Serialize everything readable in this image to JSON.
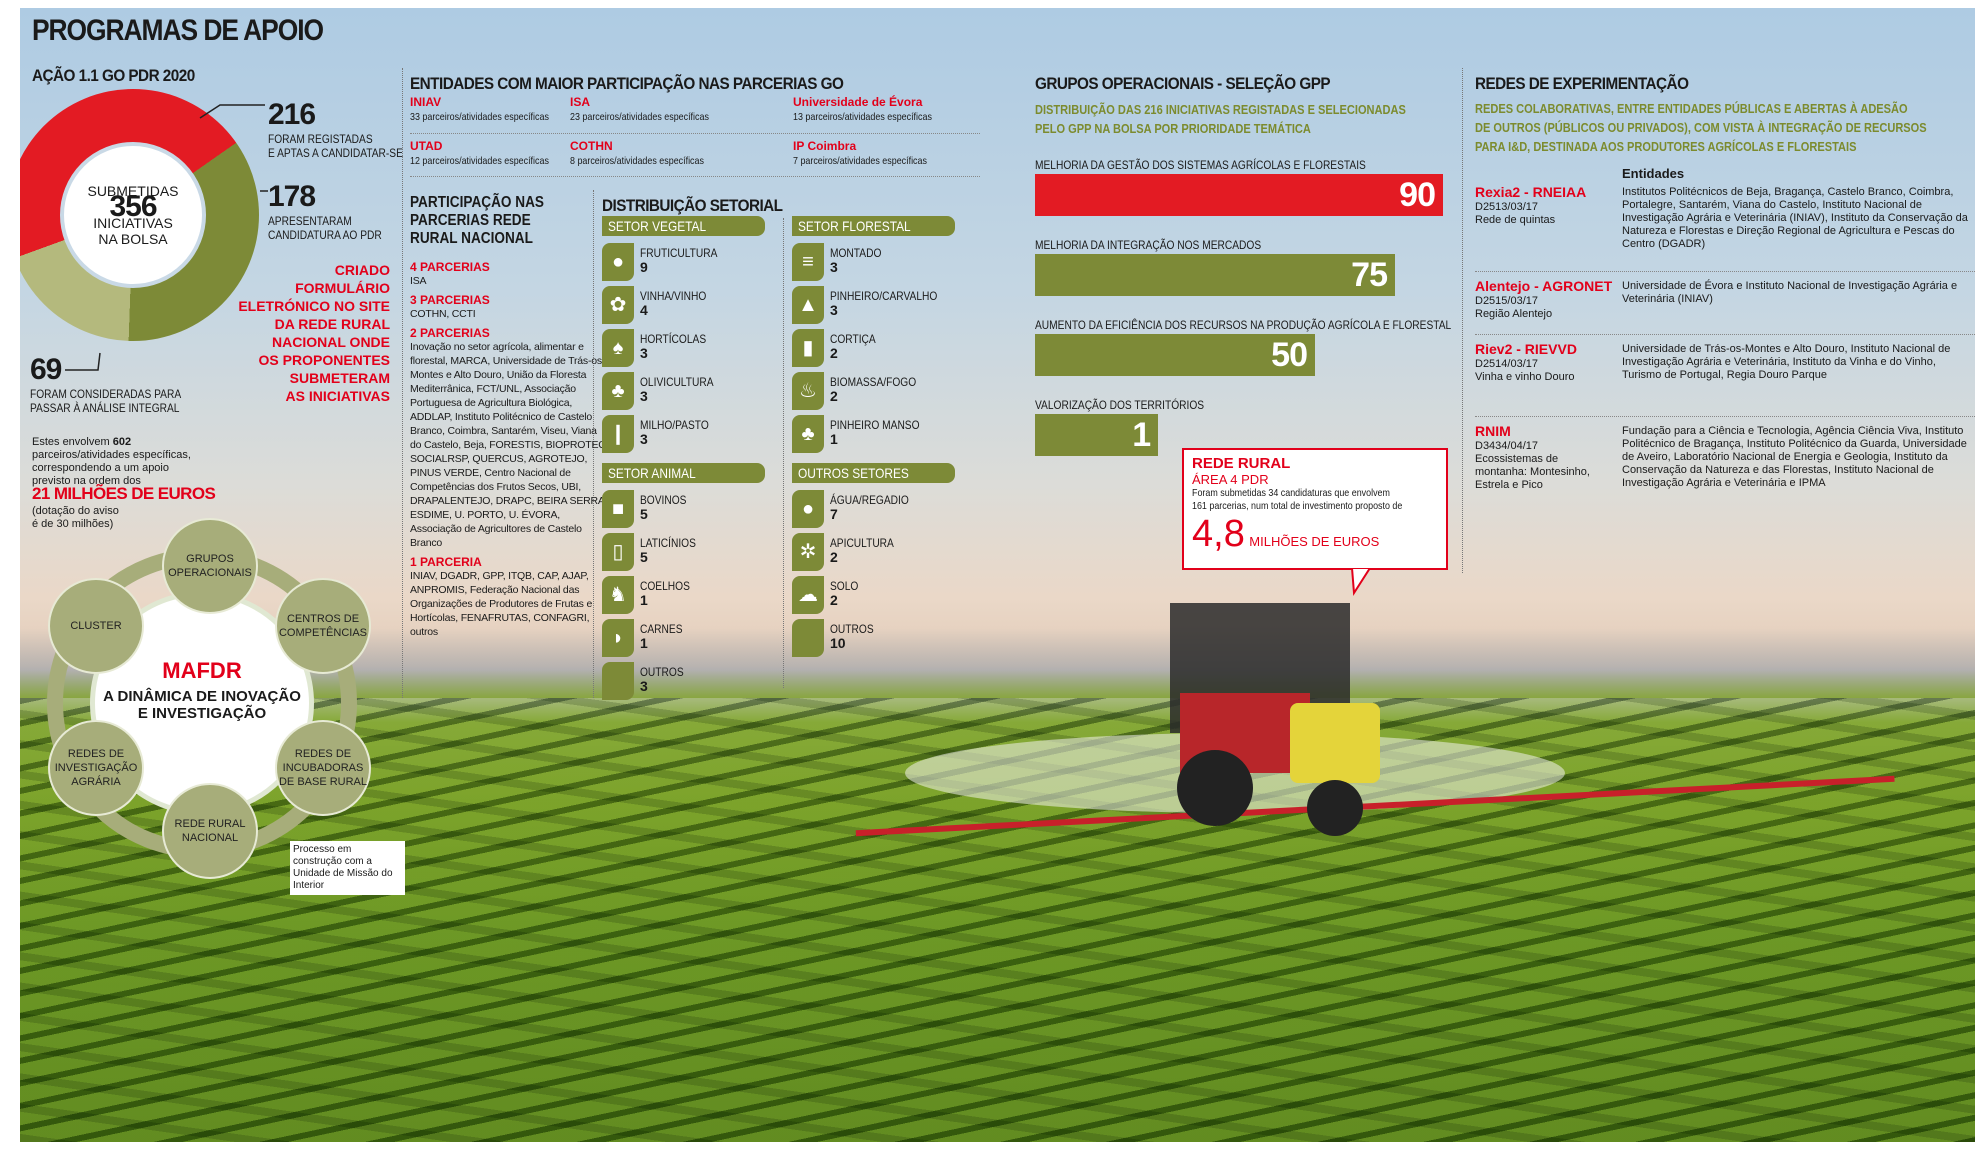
{
  "title": "PROGRAMAS DE APOIO",
  "accao": {
    "title": "AÇÃO 1.1 GO PDR 2020",
    "center": {
      "top": "SUBMETIDAS",
      "number": "356",
      "line1": "INICIATIVAS",
      "line2": "NA BOLSA"
    },
    "stat216": {
      "number": "216",
      "line1": "FORAM REGISTADAS",
      "line2": "E APTAS A CANDIDATAR-SE"
    },
    "stat178": {
      "number": "178",
      "line1": "APRESENTARAM",
      "line2": "CANDIDATURA AO PDR"
    },
    "stat69": {
      "number": "69",
      "line1": "FORAM CONSIDERADAS PARA",
      "line2": "PASSAR À ANÁLISE INTEGRAL"
    },
    "red_note": [
      "CRIADO",
      "FORMULÁRIO",
      "ELETRÓNICO NO SITE",
      "DA REDE RURAL",
      "NACIONAL ONDE",
      "OS PROPONENTES",
      "SUBMETERAM",
      "AS INICIATIVAS"
    ],
    "detail": {
      "pre": "Estes envolvem ",
      "num": "602",
      "post": " parceiros/atividades específicas, correspondendo a um apoio previsto na ordem dos",
      "amount": "21 MILHÕES DE EUROS",
      "note1": "(dotação do aviso",
      "note2": "é de 30 milhões)"
    },
    "donut_colors": {
      "registadas": "#e31b23",
      "candidatura": "#7d8a37",
      "analise": "#b4b97d"
    }
  },
  "cycle": {
    "title": "MAFDR",
    "subtitle1": "A DINÂMICA DE INOVAÇÃO",
    "subtitle2": "E INVESTIGAÇÃO",
    "nodes": [
      "GRUPOS OPERACIONAIS",
      "CENTROS DE COMPETÊNCIAS",
      "REDES DE INCUBADORAS DE BASE RURAL",
      "REDE RURAL NACIONAL",
      "REDES DE INVESTIGAÇÃO AGRÁRIA",
      "CLUSTER"
    ],
    "note": "Processo em construção com a Unidade de Missão do Interior"
  },
  "entidades": {
    "title": "ENTIDADES COM MAIOR PARTICIPAÇÃO NAS PARCERIAS GO",
    "items": [
      {
        "name": "INIAV",
        "desc": "33 parceiros/atividades específicas"
      },
      {
        "name": "ISA",
        "desc": "23 parceiros/atividades específicas"
      },
      {
        "name": "Universidade de Évora",
        "desc": "13 parceiros/atividades específicas"
      },
      {
        "name": "UTAD",
        "desc": "12 parceiros/atividades específicas"
      },
      {
        "name": "COTHN",
        "desc": "8 parceiros/atividades específicas"
      },
      {
        "name": "IP Coimbra",
        "desc": "7 parceiros/atividades específicas"
      }
    ]
  },
  "participacao": {
    "title1": "PARTICIPAÇÃO NAS",
    "title2": "PARCERIAS REDE",
    "title3": "RURAL NACIONAL",
    "groups": [
      {
        "label": "4 PARCERIAS",
        "text": "ISA"
      },
      {
        "label": "3 PARCERIAS",
        "text": "COTHN, CCTI"
      },
      {
        "label": "2 PARCERIAS",
        "text": "Inovação no setor agrícola, alimentar e florestal, MARCA, Universidade de Trás-os-Montes e Alto Douro, União da Floresta Mediterrânica, FCT/UNL, Associação Portuguesa de Agricultura Biológica, ADDLAP, Instituto Politécnico de Castelo Branco, Coimbra, Santarém, Viseu, Viana do Castelo, Beja, FORESTIS, BIOPROTEC, SOCIALRSP, QUERCUS, AGROTEJO, PINUS VERDE, Centro Nacional de Competências dos Frutos Secos, UBI, DRAPALENTEJO, DRAPC, BEIRA SERRA, ESDIME, U. PORTO, U. ÉVORA, Associação de Agricultores de Castelo Branco"
      },
      {
        "label": "1 PARCERIA",
        "text": "INIAV, DGADR, GPP, ITQB, CAP, AJAP, ANPROMIS, Federação Nacional das Organizações de Produtores de Frutas e Hortícolas, FENAFRUTAS, CONFAGRI, outros"
      }
    ]
  },
  "distribuicao": {
    "title": "DISTRIBUIÇÃO SETORIAL",
    "sectors": [
      {
        "name": "SETOR VEGETAL",
        "items": [
          {
            "label": "FRUTICULTURA",
            "value": 9,
            "icon": "apple-icon"
          },
          {
            "label": "VINHA/VINHO",
            "value": 4,
            "icon": "grapes-icon"
          },
          {
            "label": "HORTÍCOLAS",
            "value": 3,
            "icon": "vegetable-icon"
          },
          {
            "label": "OLIVICULTURA",
            "value": 3,
            "icon": "olive-icon"
          },
          {
            "label": "MILHO/PASTO",
            "value": 3,
            "icon": "corn-icon"
          }
        ]
      },
      {
        "name": "SETOR FLORESTAL",
        "items": [
          {
            "label": "MONTADO",
            "value": 3,
            "icon": "field-icon"
          },
          {
            "label": "PINHEIRO/CARVALHO",
            "value": 3,
            "icon": "pine-tree-icon"
          },
          {
            "label": "CORTIÇA",
            "value": 2,
            "icon": "cork-icon"
          },
          {
            "label": "BIOMASSA/FOGO",
            "value": 2,
            "icon": "fire-icon"
          },
          {
            "label": "PINHEIRO MANSO",
            "value": 1,
            "icon": "umbrella-pine-icon"
          }
        ]
      },
      {
        "name": "SETOR ANIMAL",
        "items": [
          {
            "label": "BOVINOS",
            "value": 5,
            "icon": "cow-icon"
          },
          {
            "label": "LATICÍNIOS",
            "value": 5,
            "icon": "milk-jar-icon"
          },
          {
            "label": "COELHOS",
            "value": 1,
            "icon": "rabbit-icon"
          },
          {
            "label": "CARNES",
            "value": 1,
            "icon": "meat-icon"
          },
          {
            "label": "OUTROS",
            "value": 3,
            "icon": "blank-icon"
          }
        ]
      },
      {
        "name": "OUTROS SETORES",
        "items": [
          {
            "label": "ÁGUA/REGADIO",
            "value": 7,
            "icon": "water-drop-icon"
          },
          {
            "label": "APICULTURA",
            "value": 2,
            "icon": "bee-icon"
          },
          {
            "label": "SOLO",
            "value": 2,
            "icon": "soil-icon"
          },
          {
            "label": "OUTROS",
            "value": 10,
            "icon": "blank-icon"
          }
        ]
      }
    ]
  },
  "gpp": {
    "title": "GRUPOS OPERACIONAIS - SELEÇÃO GPP",
    "subtitle1": "DISTRIBUIÇÃO DAS 216 INICIATIVAS REGISTADAS E SELECIONADAS",
    "subtitle2": "PELO GPP NA BOLSA POR PRIORIDADE TEMÁTICA",
    "chart_data": {
      "type": "bar",
      "categories": [
        "MELHORIA DA GESTÃO DOS SISTEMAS AGRÍCOLAS E FLORESTAIS",
        "MELHORIA DA INTEGRAÇÃO NOS MERCADOS",
        "AUMENTO DA EFICIÊNCIA DOS RECURSOS NA PRODUÇÃO AGRÍCOLA E FLORESTAL",
        "VALORIZAÇÃO DOS TERRITÓRIOS"
      ],
      "values": [
        90,
        75,
        50,
        1
      ],
      "colors": [
        "#e31b23",
        "#7d8a37",
        "#7d8a37",
        "#7d8a37"
      ]
    }
  },
  "rede_rural": {
    "title": "REDE RURAL",
    "area": "ÁREA 4 PDR",
    "text1": "Foram submetidas 34 candidaturas que envolvem",
    "text2": "161 parcerias, num total de investimento proposto de",
    "amount": "4,8",
    "unit": "MILHÕES DE EUROS"
  },
  "redes": {
    "title": "REDES DE EXPERIMENTAÇÃO",
    "subtitle": [
      "REDES COLABORATIVAS, ENTRE ENTIDADES PÚBLICAS E ABERTAS À ADESÃO",
      "DE OUTROS (PÚBLICOS OU PRIVADOS), COM VISTA À INTEGRAÇÃO DE RECURSOS",
      "PARA I&D, DESTINADA AOS PRODUTORES AGRÍCOLAS E FLORESTAIS"
    ],
    "entities_header": "Entidades",
    "items": [
      {
        "name": "Rexia2 - RNEIAA",
        "code": "D2513/03/17",
        "desc": "Rede de quintas",
        "entities": "Institutos Politécnicos de Beja, Bragança, Castelo Branco, Coimbra,  Portalegre, Santarém, Viana do Castelo, Instituto Nacional de Investigação Agrária e Veterinária (INIAV), Instituto da Conservação da Natureza e Florestas e Direção Regional de Agricultura  e Pescas do Centro (DGADR)"
      },
      {
        "name": "Alentejo - AGRONET",
        "code": "D2515/03/17",
        "desc": "Região Alentejo",
        "entities": "Universidade de Évora e Instituto Nacional de Investigação Agrária e Veterinária (INIAV)"
      },
      {
        "name": "Riev2 - RIEVVD",
        "code": "D2514/03/17",
        "desc": "Vinha e vinho Douro",
        "entities": "Universidade de Trás-os-Montes e Alto Douro, Instituto Nacional de Investigação Agrária e Veterinária, Instituto da Vinha e do Vinho, Turismo de Portugal, Regia Douro Parque"
      },
      {
        "name": "RNIM",
        "code": "D3434/04/17",
        "desc": "Ecossistemas de montanha: Montesinho, Estrela e Pico",
        "entities": "Fundação para a Ciência e Tecnologia, Agência Ciência Viva, Instituto Politécnico de Bragança, Instituto Politécnico da Guarda, Universidade de Aveiro, Laboratório Nacional de Energia e Geologia, Instituto da Conservação da Natureza e das Florestas, Instituto Nacional de Investigação Agrária e Veterinária e IPMA"
      }
    ]
  }
}
